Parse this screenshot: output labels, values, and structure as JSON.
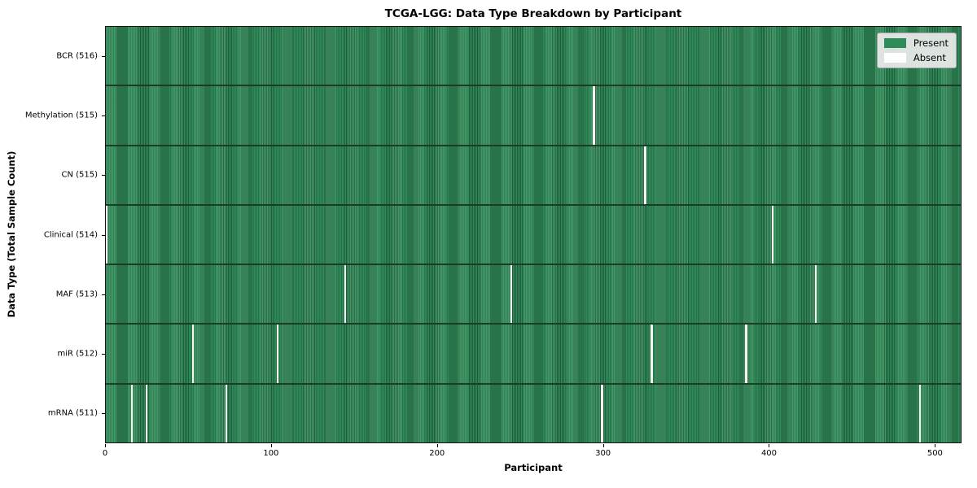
{
  "chart_data": {
    "type": "heatmap",
    "title": "TCGA-LGG: Data Type Breakdown by Participant",
    "xlabel": "Participant",
    "ylabel": "Data Type (Total Sample Count)",
    "n_participants": 516,
    "x_ticks": [
      0,
      100,
      200,
      300,
      400,
      500
    ],
    "grid": false,
    "legend_position": "upper right",
    "colors": {
      "present": "#2e8b57",
      "present_stripe_dark": "#215f3d",
      "absent": "#ffffff",
      "row_divider": "#1b3d27",
      "frame": "#141414",
      "legend_bg": "#ececec"
    },
    "legend": [
      {
        "label": "Present",
        "color": "#2e8b57"
      },
      {
        "label": "Absent",
        "color": "#ffffff"
      }
    ],
    "rows": [
      {
        "label": "BCR (516)",
        "count": 516,
        "absent_participants": []
      },
      {
        "label": "Methylation (515)",
        "count": 515,
        "absent_participants": [
          294
        ]
      },
      {
        "label": "CN (515)",
        "count": 515,
        "absent_participants": [
          325
        ]
      },
      {
        "label": "Clinical (514)",
        "count": 514,
        "absent_participants": [
          0,
          402
        ]
      },
      {
        "label": "MAF (513)",
        "count": 513,
        "absent_participants": [
          144,
          244,
          428
        ]
      },
      {
        "label": "miR (512)",
        "count": 512,
        "absent_participants": [
          52,
          103,
          329,
          386
        ]
      },
      {
        "label": "mRNA (511)",
        "count": 511,
        "absent_participants": [
          15,
          24,
          72,
          299,
          491
        ]
      }
    ]
  }
}
